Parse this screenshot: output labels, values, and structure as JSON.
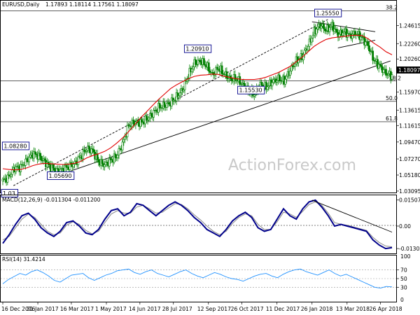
{
  "header": {
    "symbol": "EURUSD,Daily",
    "ohlc": "1.17893 1.18114 1.17561 1.18097"
  },
  "watermark": "ActionForex.com",
  "colors": {
    "candle": "#008000",
    "ma_fast": "#e00000",
    "macd": "#00008b",
    "signal": "#888888",
    "rsi": "#1e90ff",
    "fib": "#000000",
    "grid": "#000000",
    "box": "#00008b",
    "price_tag_bg": "#000000",
    "price_tag_fg": "#ffffff"
  },
  "chart_data": [
    {
      "type": "candlestick",
      "x_start": "2016-12-16",
      "x_end": "2018-05-11",
      "ylim": [
        1.0309,
        1.2665
      ],
      "y_ticks": [
        "1.24615",
        "1.22260",
        "1.20260",
        "1.18097",
        "1.15970",
        "1.13615",
        "1.11615",
        "1.09470",
        "1.07270",
        "1.05180",
        "1.03095"
      ],
      "last_price": "1.18097",
      "fib_levels": [
        {
          "label": "38.2",
          "value": 1.2652
        },
        {
          "label": "",
          "value": 1.174
        },
        {
          "label": "50.0",
          "value": 1.1475
        },
        {
          "label": "61.8",
          "value": 1.121
        }
      ],
      "fib_label_partial": "38.2",
      "annotations": [
        {
          "label": "1.25550",
          "date": "2018-02-16",
          "value": 1.2555
        },
        {
          "label": "1.20910",
          "date": "2017-08-29",
          "value": 1.2091
        },
        {
          "label": "1.15530",
          "date": "2017-11-07",
          "value": 1.1553
        },
        {
          "label": "1.08280",
          "date": "2017-01-02",
          "value": 1.0828
        },
        {
          "label": "1.05690",
          "date": "2017-03-02",
          "value": 1.0569
        },
        {
          "label": "1.03",
          "date": "2016-12-20",
          "value": 1.0341
        }
      ],
      "closes": [
        1.044,
        1.05,
        1.061,
        1.062,
        1.0715,
        1.0795,
        1.0765,
        1.069,
        1.062,
        1.057,
        1.059,
        1.063,
        1.067,
        1.076,
        1.086,
        1.0835,
        1.069,
        1.065,
        1.071,
        1.076,
        1.092,
        1.116,
        1.12,
        1.1195,
        1.124,
        1.131,
        1.1395,
        1.142,
        1.1455,
        1.153,
        1.1625,
        1.1815,
        1.197,
        1.2,
        1.1945,
        1.182,
        1.191,
        1.183,
        1.1765,
        1.177,
        1.17,
        1.161,
        1.157,
        1.169,
        1.166,
        1.173,
        1.177,
        1.174,
        1.188,
        1.2,
        1.206,
        1.22,
        1.238,
        1.247,
        1.24,
        1.246,
        1.234,
        1.238,
        1.233,
        1.236,
        1.23,
        1.22,
        1.201,
        1.193,
        1.184,
        1.181
      ],
      "ma": [
        1.06,
        1.059,
        1.0585,
        1.059,
        1.061,
        1.064,
        1.066,
        1.067,
        1.0665,
        1.066,
        1.0655,
        1.066,
        1.067,
        1.0695,
        1.074,
        1.077,
        1.0795,
        1.0825,
        1.087,
        1.093,
        1.1,
        1.108,
        1.117,
        1.126,
        1.134,
        1.142,
        1.15,
        1.157,
        1.164,
        1.169,
        1.173,
        1.177,
        1.18,
        1.1815,
        1.182,
        1.183,
        1.1825,
        1.18,
        1.1785,
        1.177,
        1.176,
        1.176,
        1.176,
        1.177,
        1.179,
        1.182,
        1.185,
        1.189,
        1.193,
        1.199,
        1.205,
        1.212,
        1.219,
        1.224,
        1.228,
        1.23,
        1.231,
        1.232,
        1.233,
        1.2335,
        1.233,
        1.229,
        1.223,
        1.218,
        1.212,
        1.208
      ],
      "trendlines": [
        {
          "from": [
            "2017-03-15",
            1.057
          ],
          "to": [
            "2018-05-09",
            1.2
          ]
        },
        {
          "from": [
            "2016-12-30",
            1.038
          ],
          "to": [
            "2018-02-16",
            1.254
          ]
        },
        {
          "from": [
            "2018-01-26",
            1.251
          ],
          "to": [
            "2018-04-19",
            1.238
          ]
        },
        {
          "from": [
            "2018-03-01",
            1.217
          ],
          "to": [
            "2018-04-19",
            1.227
          ]
        }
      ]
    },
    {
      "type": "line",
      "name": "MACD(12,26,9) -0.011304 -0.011200",
      "ylim": [
        -0.015,
        0.017
      ],
      "y_ticks": [
        "0.015076",
        "0.00",
        "-0.013021"
      ],
      "macd": [
        -0.01,
        -0.005,
        0.001,
        0.006,
        0.0075,
        0.004,
        -0.001,
        -0.004,
        -0.006,
        -0.003,
        0.002,
        0.003,
        0.0,
        -0.004,
        -0.005,
        -0.002,
        0.004,
        0.009,
        0.01,
        0.006,
        0.008,
        0.013,
        0.012,
        0.009,
        0.006,
        0.009,
        0.012,
        0.014,
        0.012,
        0.009,
        0.005,
        0.002,
        -0.002,
        -0.004,
        -0.006,
        -0.002,
        0.003,
        0.006,
        0.008,
        0.005,
        -0.001,
        -0.003,
        -0.002,
        0.004,
        0.01,
        0.006,
        0.004,
        0.01,
        0.014,
        0.015,
        0.011,
        0.006,
        0.0,
        0.001,
        0.0,
        -0.001,
        -0.002,
        -0.003,
        -0.008,
        -0.011,
        -0.013,
        -0.0125
      ],
      "signal": [
        -0.008,
        -0.006,
        -0.001,
        0.004,
        0.007,
        0.005,
        0.001,
        -0.003,
        -0.005,
        -0.004,
        0.0005,
        0.0025,
        0.001,
        -0.0025,
        -0.0045,
        -0.003,
        0.002,
        0.007,
        0.009,
        0.0075,
        0.0075,
        0.011,
        0.012,
        0.01,
        0.0075,
        0.008,
        0.0105,
        0.013,
        0.0125,
        0.01,
        0.0065,
        0.0035,
        0.0,
        -0.003,
        -0.005,
        -0.003,
        0.0015,
        0.005,
        0.007,
        0.006,
        0.001,
        -0.002,
        -0.002,
        0.0025,
        0.008,
        0.007,
        0.005,
        0.0085,
        0.0125,
        0.014,
        0.012,
        0.0075,
        0.002,
        0.001,
        0.0005,
        -0.0005,
        -0.0015,
        -0.0025,
        -0.0065,
        -0.0095,
        -0.0115,
        -0.012
      ],
      "trendline": {
        "from": [
          "2018-01-26",
          0.015
        ],
        "to": [
          "2018-05-11",
          -0.0035
        ]
      }
    },
    {
      "type": "line",
      "name": "RSI(14) 31.4214",
      "ylim": [
        0,
        100
      ],
      "y_ticks": [
        "100",
        "70",
        "50",
        "30",
        "0"
      ],
      "levels": [
        70,
        50,
        30
      ],
      "values": [
        38,
        48,
        55,
        62,
        58,
        66,
        70,
        64,
        56,
        46,
        42,
        50,
        58,
        60,
        62,
        52,
        46,
        52,
        58,
        62,
        68,
        70,
        72,
        64,
        60,
        66,
        70,
        62,
        58,
        54,
        60,
        66,
        70,
        62,
        56,
        52,
        58,
        64,
        60,
        54,
        50,
        48,
        44,
        50,
        56,
        60,
        62,
        56,
        52,
        60,
        66,
        70,
        72,
        66,
        62,
        58,
        64,
        70,
        62,
        56,
        60,
        54,
        48,
        42,
        36,
        30,
        28,
        32,
        31
      ]
    }
  ],
  "x_axis_labels": [
    {
      "date": "2016-12-16",
      "label": "16 Dec 2016"
    },
    {
      "date": "2017-01-31",
      "label": "31 Jan 2017"
    },
    {
      "date": "2017-03-16",
      "label": "16 Mar 2017"
    },
    {
      "date": "2017-05-01",
      "label": "1 May 2017"
    },
    {
      "date": "2017-06-14",
      "label": "14 Jun 2017"
    },
    {
      "date": "2017-07-28",
      "label": "28 Jul 2017"
    },
    {
      "date": "2017-09-12",
      "label": "12 Sep 2017"
    },
    {
      "date": "2017-10-26",
      "label": "26 Oct 2017"
    },
    {
      "date": "2017-12-11",
      "label": "11 Dec 2017"
    },
    {
      "date": "2018-01-26",
      "label": "26 Jan 2018"
    },
    {
      "date": "2018-03-13",
      "label": "13 Mar 2018"
    },
    {
      "date": "2018-04-26",
      "label": "26 Apr 2018"
    }
  ]
}
